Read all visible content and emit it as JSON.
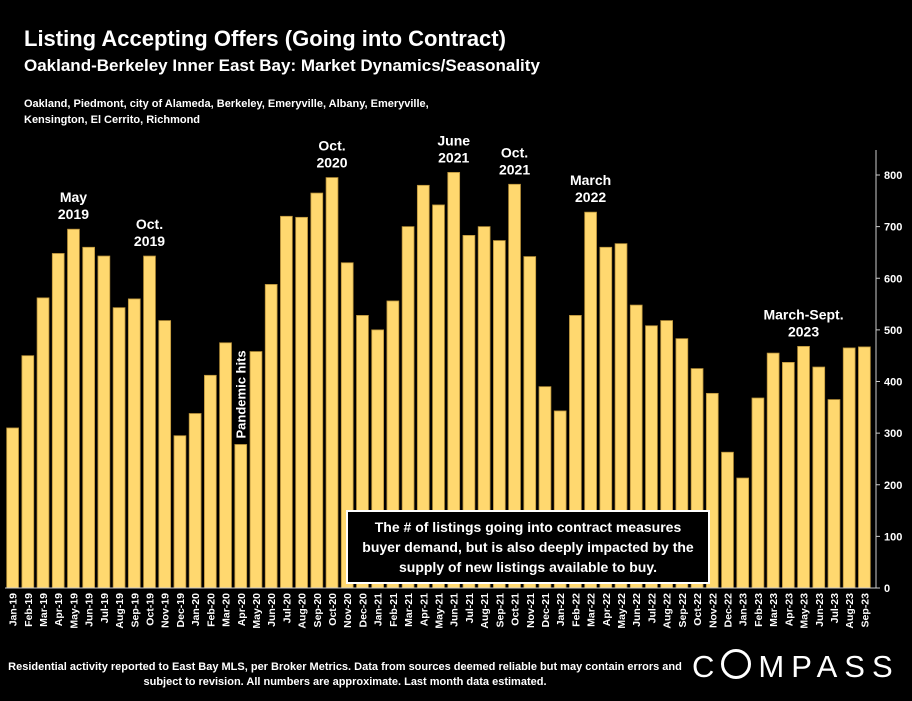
{
  "title": "Listing Accepting Offers (Going into Contract)",
  "subtitle": "Oakland-Berkeley Inner East Bay: Market Dynamics/Seasonality",
  "cities": "Oakland, Piedmont, city of Alameda, Berkeley, Emeryville, Albany, Emeryville, Kensington, El Cerrito, Richmond",
  "note": "The # of listings going into contract measures buyer demand, but is also deeply impacted by the supply of new listings available to buy.",
  "footnote": "Residential activity reported to East Bay MLS, per Broker Metrics. Data from sources deemed reliable but may contain errors and subject to revision. All numbers are approximate. Last month data estimated.",
  "logo": "MPASS",
  "logo_prefix": "C",
  "colors": {
    "bar": "#ffd86f",
    "bar_edge": "#b8913a",
    "background": "#000000",
    "text": "#ffffff"
  },
  "chart_data": {
    "type": "bar",
    "categories": [
      "Jan-19",
      "Feb-19",
      "Mar-19",
      "Apr-19",
      "May-19",
      "Jun-19",
      "Jul-19",
      "Aug-19",
      "Sep-19",
      "Oct-19",
      "Nov-19",
      "Dec-19",
      "Jan-20",
      "Feb-20",
      "Mar-20",
      "Apr-20",
      "May-20",
      "Jun-20",
      "Jul-20",
      "Aug-20",
      "Sep-20",
      "Oct-20",
      "Nov-20",
      "Dec-20",
      "Jan-21",
      "Feb-21",
      "Mar-21",
      "Apr-21",
      "May-21",
      "Jun-21",
      "Jul-21",
      "Aug-21",
      "Sep-21",
      "Oct-21",
      "Nov-21",
      "Dec-21",
      "Jan-22",
      "Feb-22",
      "Mar-22",
      "Apr-22",
      "May-22",
      "Jun-22",
      "Jul-22",
      "Aug-22",
      "Sep-22",
      "Oct-22",
      "Nov-22",
      "Dec-22",
      "Jan-23",
      "Feb-23",
      "Mar-23",
      "Apr-23",
      "May-23",
      "Jun-23",
      "Jul-23",
      "Aug-23",
      "Sep-23"
    ],
    "values": [
      310,
      450,
      562,
      648,
      695,
      660,
      643,
      543,
      560,
      643,
      518,
      295,
      338,
      412,
      475,
      278,
      458,
      588,
      720,
      718,
      765,
      795,
      630,
      528,
      500,
      556,
      700,
      780,
      742,
      805,
      683,
      700,
      673,
      782,
      642,
      390,
      343,
      528,
      728,
      660,
      667,
      548,
      508,
      518,
      483,
      425,
      377,
      263,
      213,
      368,
      455,
      437,
      468,
      428,
      365,
      465,
      467
    ],
    "ylim": [
      0,
      800
    ],
    "yticks": [
      0,
      100,
      200,
      300,
      400,
      500,
      600,
      700,
      800
    ],
    "y_axis_side": "right",
    "grid": false,
    "annotations": [
      {
        "text": "May 2019",
        "lines": [
          "May",
          "2019"
        ],
        "category": "May-19"
      },
      {
        "text": "Oct. 2019",
        "lines": [
          "Oct.",
          "2019"
        ],
        "category": "Oct-19"
      },
      {
        "text": "Pandemic hits",
        "lines": [
          "Pandemic hits"
        ],
        "category": "Apr-20",
        "rotated": true
      },
      {
        "text": "Oct. 2020",
        "lines": [
          "Oct.",
          "2020"
        ],
        "category": "Oct-20"
      },
      {
        "text": "June 2021",
        "lines": [
          "June",
          "2021"
        ],
        "category": "Jun-21"
      },
      {
        "text": "Oct. 2021",
        "lines": [
          "Oct.",
          "2021"
        ],
        "category": "Oct-21"
      },
      {
        "text": "March 2022",
        "lines": [
          "March",
          "2022"
        ],
        "category": "Mar-22"
      },
      {
        "text": "March-Sept. 2023",
        "lines": [
          "March-Sept.",
          "2023"
        ],
        "category": "May-23"
      }
    ]
  }
}
